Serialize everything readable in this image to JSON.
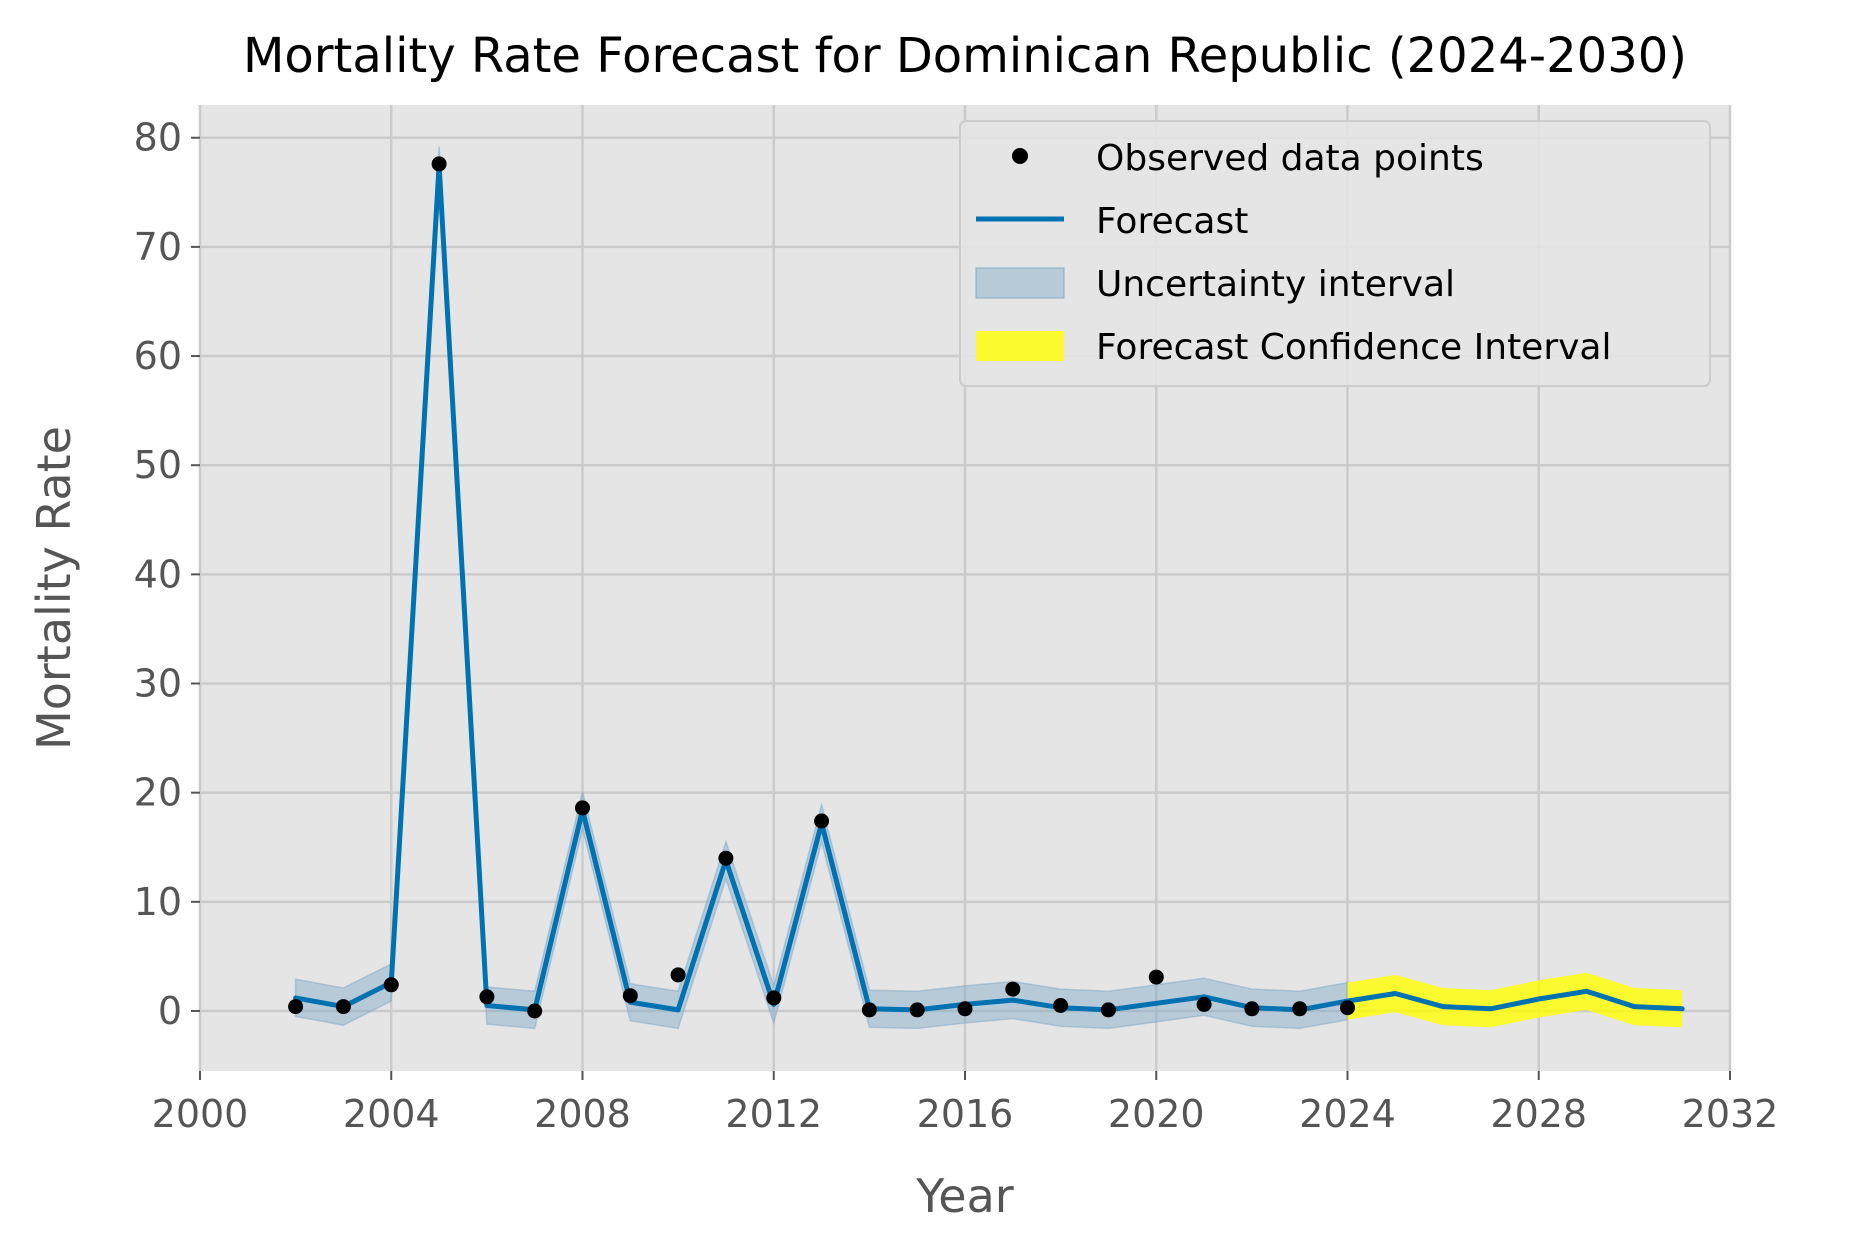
{
  "chart_data": {
    "type": "line",
    "title": "Mortality Rate Forecast for Dominican Republic (2024-2030)",
    "xlabel": "Year",
    "ylabel": "Mortality Rate",
    "xlim": [
      2000,
      2032
    ],
    "ylim": [
      -5.5,
      83
    ],
    "x_ticks": [
      2000,
      2004,
      2008,
      2012,
      2016,
      2020,
      2024,
      2028,
      2032
    ],
    "y_ticks": [
      0,
      10,
      20,
      30,
      40,
      50,
      60,
      70,
      80
    ],
    "grid": true,
    "legend_position": "top-right",
    "legend": [
      "Observed data points",
      "Forecast",
      "Uncertainty interval",
      "Forecast Confidence Interval"
    ],
    "colors": {
      "background": "#e5e5e5",
      "grid": "#cbcbcb",
      "forecast": "#0072b2",
      "uncertainty": "#7fa9c8",
      "forecast_ci": "#ffff00",
      "observed": "#000000"
    },
    "observed": {
      "name": "Observed data points",
      "x": [
        2002,
        2003,
        2004,
        2005,
        2006,
        2007,
        2008,
        2009,
        2010,
        2011,
        2012,
        2013,
        2014,
        2015,
        2016,
        2017,
        2018,
        2019,
        2020,
        2021,
        2022,
        2023,
        2024
      ],
      "y": [
        0.4,
        0.4,
        2.4,
        77.6,
        1.3,
        0.0,
        18.6,
        1.4,
        3.3,
        14.0,
        1.2,
        17.4,
        0.1,
        0.1,
        0.2,
        2.0,
        0.5,
        0.1,
        3.1,
        0.6,
        0.2,
        0.2,
        0.3
      ]
    },
    "forecast": {
      "name": "Forecast",
      "x": [
        2002,
        2003,
        2004,
        2005,
        2006,
        2007,
        2008,
        2009,
        2010,
        2011,
        2012,
        2013,
        2014,
        2015,
        2016,
        2017,
        2018,
        2019,
        2020,
        2021,
        2022,
        2023,
        2024,
        2025,
        2026,
        2027,
        2028,
        2029,
        2030,
        2031
      ],
      "y": [
        1.2,
        0.4,
        2.6,
        77.5,
        0.5,
        0.1,
        18.4,
        0.8,
        0.1,
        13.8,
        0.6,
        17.2,
        0.2,
        0.1,
        0.6,
        1.0,
        0.3,
        0.1,
        0.7,
        1.3,
        0.3,
        0.1,
        0.9,
        1.6,
        0.4,
        0.2,
        1.1,
        1.8,
        0.4,
        0.2
      ]
    },
    "uncertainty_band": {
      "name": "Uncertainty interval",
      "x": [
        2002,
        2003,
        2004,
        2005,
        2006,
        2007,
        2008,
        2009,
        2010,
        2011,
        2012,
        2013,
        2014,
        2015,
        2016,
        2017,
        2018,
        2019,
        2020,
        2021,
        2022,
        2023,
        2024
      ],
      "lower": [
        -0.5,
        -1.3,
        0.9,
        75.8,
        -1.2,
        -1.6,
        16.7,
        -0.9,
        -1.6,
        12.1,
        -1.1,
        15.5,
        -1.5,
        -1.6,
        -1.1,
        -0.7,
        -1.4,
        -1.6,
        -1.0,
        -0.4,
        -1.4,
        -1.6,
        -0.8
      ],
      "upper": [
        2.9,
        2.1,
        4.3,
        79.2,
        2.2,
        1.8,
        20.1,
        2.5,
        1.8,
        15.5,
        2.3,
        18.9,
        1.9,
        1.8,
        2.3,
        2.7,
        2.0,
        1.8,
        2.4,
        3.0,
        2.0,
        1.8,
        2.6
      ]
    },
    "forecast_ci_band": {
      "name": "Forecast Confidence Interval",
      "x": [
        2024,
        2025,
        2026,
        2027,
        2028,
        2029,
        2030,
        2031
      ],
      "lower": [
        -0.8,
        -0.1,
        -1.3,
        -1.5,
        -0.6,
        0.1,
        -1.3,
        -1.5
      ],
      "upper": [
        2.6,
        3.3,
        2.1,
        1.9,
        2.8,
        3.5,
        2.1,
        1.9
      ]
    }
  }
}
